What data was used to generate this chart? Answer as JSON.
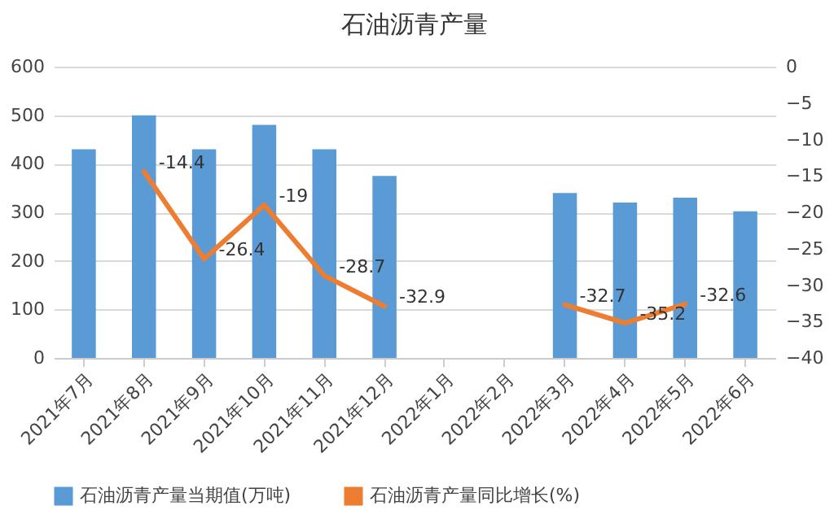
{
  "chart_data": {
    "type": "bar",
    "title": "石油沥青产量",
    "categories": [
      "2021年7月",
      "2021年8月",
      "2021年9月",
      "2021年10月",
      "2021年11月",
      "2021年12月",
      "2022年1月",
      "2022年2月",
      "2022年3月",
      "2022年4月",
      "2022年5月",
      "2022年6月"
    ],
    "series": [
      {
        "name": "石油沥青产量当期值(万吨)",
        "color": "#5b9bd5",
        "values": [
          430,
          500,
          430,
          480,
          430,
          375,
          null,
          null,
          340,
          320,
          330,
          302
        ]
      },
      {
        "name": "石油沥青产量同比增长(%)",
        "type": "line",
        "axis": "y2",
        "color": "#ed7d31",
        "values": [
          null,
          -14.4,
          -26.4,
          -19,
          -28.7,
          -32.9,
          null,
          null,
          -32.7,
          -35.2,
          -32.6,
          null
        ],
        "value_labels": [
          null,
          "-14.4",
          "-26.4",
          "-19",
          "-28.7",
          "-32.9",
          null,
          null,
          "-32.7",
          "-35.2",
          "-32.6",
          null
        ]
      }
    ],
    "ylim": [
      0,
      600
    ],
    "yticks": [
      0,
      100,
      200,
      300,
      400,
      500,
      600
    ],
    "y2lim": [
      -40,
      0
    ],
    "y2ticks": [
      -40,
      -35,
      -30,
      -25,
      -20,
      -15,
      -10,
      -5,
      0
    ],
    "grid": "y",
    "legend": "bottom"
  }
}
